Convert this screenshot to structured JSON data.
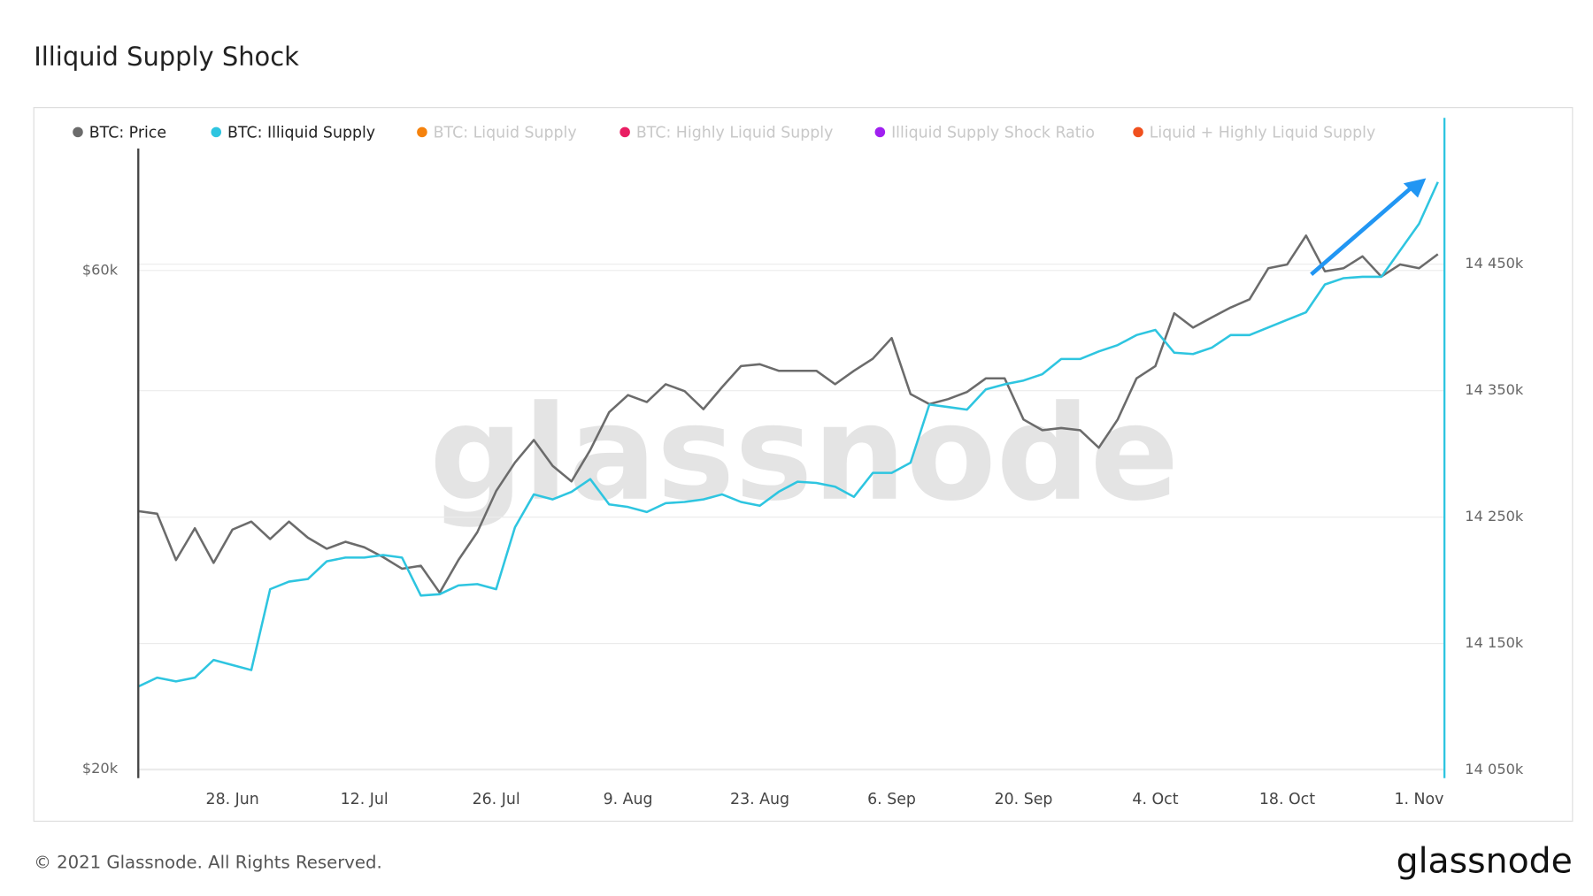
{
  "chart_data": {
    "type": "line",
    "title": "Illiquid Supply Shock",
    "watermark": "glassnode",
    "footer": "© 2021 Glassnode. All Rights Reserved.",
    "logo": "glassnode",
    "x": [
      "18. Jun",
      "20. Jun",
      "22. Jun",
      "24. Jun",
      "26. Jun",
      "28. Jun",
      "30. Jun",
      "2. Jul",
      "4. Jul",
      "6. Jul",
      "8. Jul",
      "10. Jul",
      "12. Jul",
      "14. Jul",
      "16. Jul",
      "18. Jul",
      "20. Jul",
      "22. Jul",
      "24. Jul",
      "26. Jul",
      "28. Jul",
      "30. Jul",
      "1. Aug",
      "3. Aug",
      "5. Aug",
      "7. Aug",
      "9. Aug",
      "11. Aug",
      "13. Aug",
      "15. Aug",
      "17. Aug",
      "19. Aug",
      "21. Aug",
      "23. Aug",
      "25. Aug",
      "27. Aug",
      "29. Aug",
      "31. Aug",
      "2. Sep",
      "4. Sep",
      "6. Sep",
      "8. Sep",
      "10. Sep",
      "12. Sep",
      "14. Sep",
      "16. Sep",
      "18. Sep",
      "20. Sep",
      "22. Sep",
      "24. Sep",
      "26. Sep",
      "28. Sep",
      "30. Sep",
      "2. Oct",
      "4. Oct",
      "6. Oct",
      "8. Oct",
      "10. Oct",
      "12. Oct",
      "14. Oct",
      "16. Oct",
      "18. Oct",
      "20. Oct",
      "22. Oct",
      "24. Oct",
      "26. Oct",
      "28. Oct",
      "30. Oct",
      "1. Nov",
      "3. Nov"
    ],
    "xticks": [
      "28. Jun",
      "12. Jul",
      "26. Jul",
      "9. Aug",
      "23. Aug",
      "6. Sep",
      "20. Sep",
      "4. Oct",
      "18. Oct",
      "1. Nov"
    ],
    "series": [
      {
        "name": "BTC: Price",
        "color": "#6b6b6b",
        "axis": "y",
        "visible": true,
        "values": [
          35300,
          35100,
          31700,
          34000,
          31500,
          33900,
          34500,
          33200,
          34500,
          33300,
          32500,
          33000,
          32600,
          31900,
          31100,
          31300,
          29500,
          31700,
          33700,
          36900,
          39300,
          41300,
          39000,
          37700,
          40400,
          43900,
          45600,
          44900,
          46700,
          46000,
          44200,
          46400,
          48600,
          48800,
          48100,
          48100,
          48100,
          46700,
          48100,
          49400,
          51700,
          45700,
          44700,
          45200,
          45900,
          47300,
          47300,
          43200,
          42200,
          42400,
          42200,
          40600,
          43200,
          47300,
          48600,
          54600,
          52900,
          54100,
          55300,
          56300,
          60300,
          60800,
          64800,
          59900,
          60300,
          61900,
          59200,
          60800,
          60300,
          62200
        ]
      },
      {
        "name": "BTC: Illiquid Supply",
        "color": "#2ec5e0",
        "axis": "y2",
        "visible": true,
        "values": [
          14116000,
          14123000,
          14120000,
          14123000,
          14137000,
          14133000,
          14129000,
          14193000,
          14199000,
          14201000,
          14215000,
          14218000,
          14218000,
          14220000,
          14218000,
          14188000,
          14189000,
          14196000,
          14197000,
          14193000,
          14242000,
          14268000,
          14264000,
          14270000,
          14280000,
          14260000,
          14258000,
          14254000,
          14261000,
          14262000,
          14264000,
          14268000,
          14262000,
          14259000,
          14270000,
          14278000,
          14277000,
          14274000,
          14266000,
          14285000,
          14285000,
          14293000,
          14339000,
          14337000,
          14335000,
          14351000,
          14355000,
          14358000,
          14363000,
          14375000,
          14375000,
          14381000,
          14386000,
          14394000,
          14398000,
          14380000,
          14379000,
          14384000,
          14394000,
          14394000,
          14400000,
          14406000,
          14412000,
          14434000,
          14439000,
          14440000,
          14440000,
          14461000,
          14482000,
          14515000
        ]
      },
      {
        "name": "BTC: Liquid Supply",
        "color": "#f5820d",
        "visible": false
      },
      {
        "name": "BTC: Highly Liquid Supply",
        "color": "#e91e63",
        "visible": false
      },
      {
        "name": "Illiquid Supply Shock Ratio",
        "color": "#a020f0",
        "visible": false
      },
      {
        "name": "Liquid + Highly Liquid Supply",
        "color": "#f0501e",
        "visible": false
      }
    ],
    "ylog": true,
    "ylim": [
      19600,
      78500
    ],
    "yticks": [
      {
        "value": 20000,
        "label": "$20k"
      },
      {
        "value": 60000,
        "label": "$60k"
      }
    ],
    "y2lim": [
      14043500,
      14541500
    ],
    "y2ticks": [
      {
        "value": 14050000,
        "label": "14 050k"
      },
      {
        "value": 14150000,
        "label": "14 150k"
      },
      {
        "value": 14250000,
        "label": "14 250k"
      },
      {
        "value": 14350000,
        "label": "14 350k"
      },
      {
        "value": 14450000,
        "label": "14 450k"
      }
    ],
    "grid": true
  }
}
